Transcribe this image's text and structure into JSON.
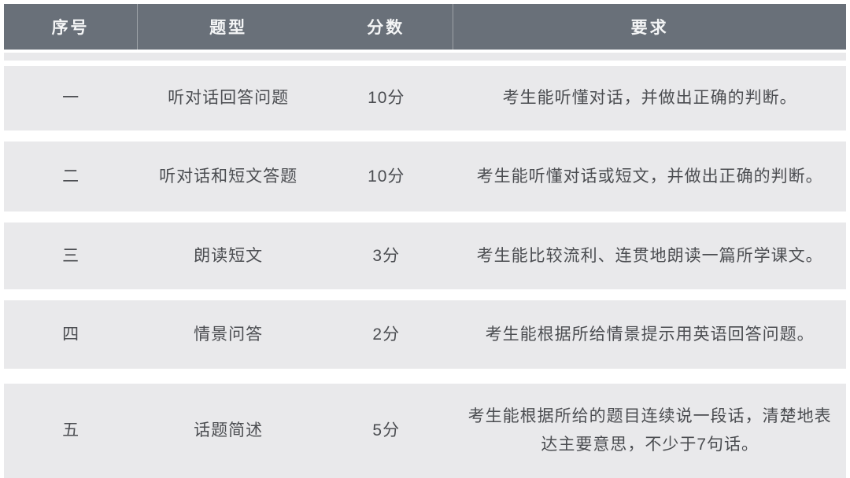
{
  "chart_data": {
    "type": "table",
    "title": "",
    "columns": [
      "序号",
      "题型",
      "分数",
      "要求"
    ],
    "rows": [
      [
        "一",
        "听对话回答问题",
        "10分",
        "考生能听懂对话，并做出正确的判断。"
      ],
      [
        "二",
        "听对话和短文答题",
        "10分",
        "考生能听懂对话或短文，并做出正确的判断。"
      ],
      [
        "三",
        "朗读短文",
        "3分",
        "考生能比较流利、连贯地朗读一篇所学课文。"
      ],
      [
        "四",
        "情景问答",
        "2分",
        "考生能根据所给情景提示用英语回答问题。"
      ],
      [
        "五",
        "话题简述",
        "5分",
        "考生能根据所给的题目连续说一段话，清楚地表达主要意思，不少于7句话。"
      ]
    ],
    "layout": {
      "legend": "none",
      "grid": "off",
      "header_position": "top",
      "row_separator": "white-gap"
    }
  },
  "colors": {
    "header_bg": "#697079",
    "header_text": "#f4f5f6",
    "row_bg": "#e9e9eb",
    "body_text": "#4b4d51",
    "page_bg": "#ffffff"
  }
}
